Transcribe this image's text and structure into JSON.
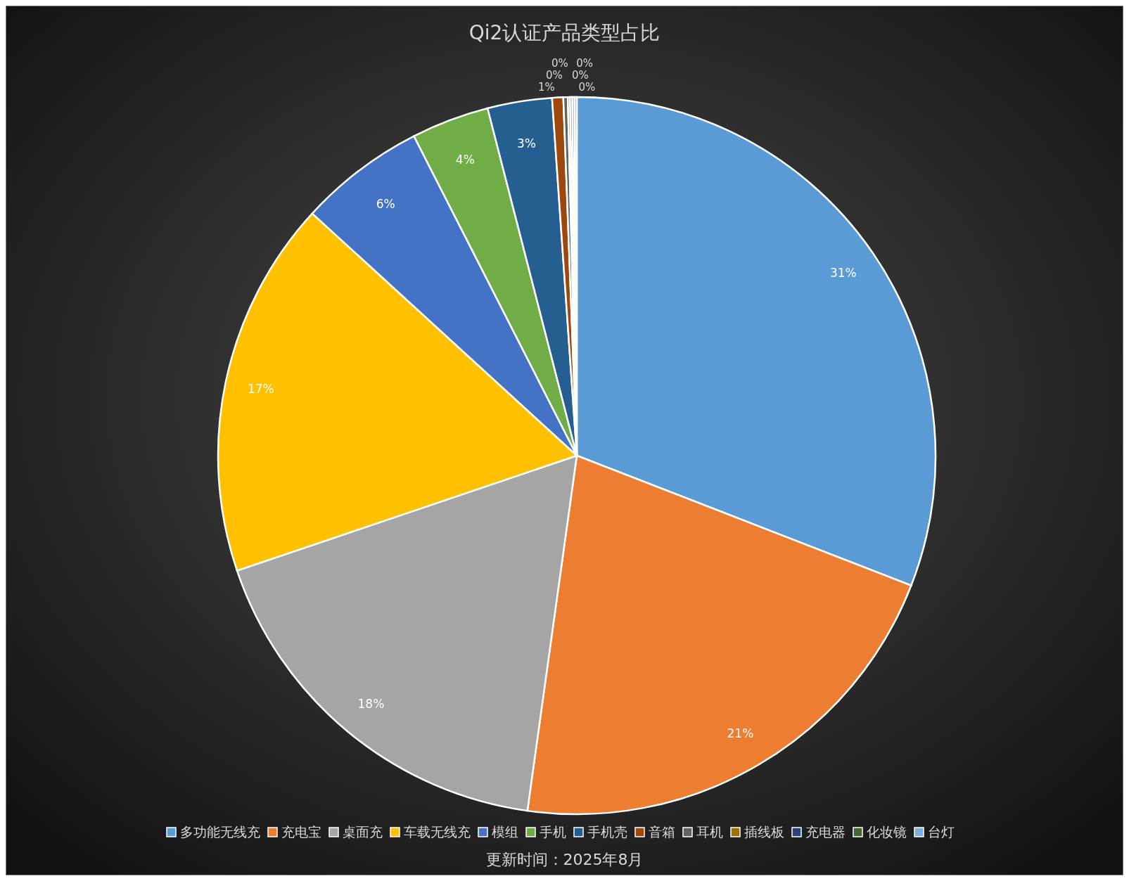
{
  "chart_data": {
    "type": "pie",
    "title": "Qi2认证产品类型占比",
    "categories": [
      "多功能无线充",
      "充电宝",
      "桌面充",
      "车载无线充",
      "模组",
      "手机",
      "手机壳",
      "音箱",
      "耳机",
      "插线板",
      "充电器",
      "化妆镜",
      "台灯"
    ],
    "values": [
      30.9,
      21.3,
      17.6,
      17.0,
      5.7,
      3.5,
      2.9,
      0.5,
      0.2,
      0.1,
      0.1,
      0.1,
      0.1
    ],
    "value_labels": [
      "31%",
      "21%",
      "18%",
      "17%",
      "6%",
      "4%",
      "3%",
      "1%",
      "0%",
      "0%",
      "0%",
      "0%",
      "0%"
    ],
    "colors": [
      "#5b9bd5",
      "#ed7d31",
      "#a5a5a5",
      "#ffc000",
      "#4472c4",
      "#70ad47",
      "#255e91",
      "#9e480e",
      "#636363",
      "#997300",
      "#264478",
      "#43682b",
      "#7cafdd"
    ],
    "legend": "bottom",
    "annotations": [
      "更新时间：2025年8月"
    ]
  }
}
